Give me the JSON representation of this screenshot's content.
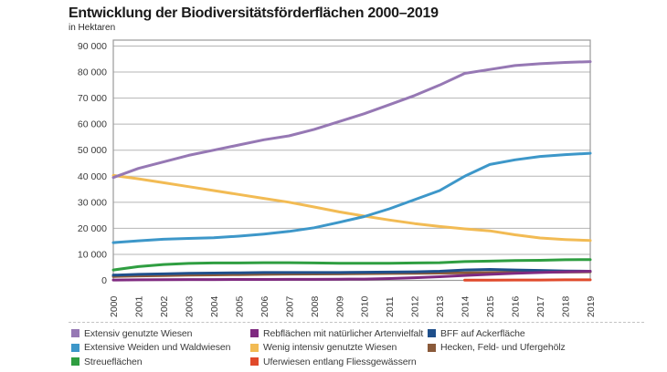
{
  "header": {
    "title": "Entwicklung der Biodiversitätsförderflächen 2000–2019",
    "subtitle": "in Hektaren"
  },
  "chart_data": {
    "type": "line",
    "title": "Entwicklung der Biodiversitätsförderflächen 2000–2019",
    "ylabel": "in Hektaren",
    "xlabel": "",
    "grid": true,
    "legend_position": "bottom",
    "ylim": [
      0,
      90000
    ],
    "yticks": [
      "0",
      "10 000",
      "20 000",
      "30 000",
      "40 000",
      "50 000",
      "60 000",
      "70 000",
      "80 000",
      "90 000"
    ],
    "x": [
      2000,
      2001,
      2002,
      2003,
      2004,
      2005,
      2006,
      2007,
      2008,
      2009,
      2010,
      2011,
      2012,
      2013,
      2014,
      2015,
      2016,
      2017,
      2018,
      2019
    ],
    "series": [
      {
        "name": "Extensiv genutzte Wiesen",
        "color": "#9678b4",
        "values": [
          39500,
          43000,
          45500,
          48000,
          50000,
          52000,
          54000,
          55500,
          58000,
          61000,
          64000,
          67500,
          71000,
          75000,
          79500,
          81000,
          82500,
          83200,
          83700,
          84000
        ]
      },
      {
        "name": "Extensive Weiden und Waldwiesen",
        "color": "#3d97c9",
        "values": [
          14500,
          15200,
          15800,
          16100,
          16400,
          17000,
          17800,
          18800,
          20200,
          22300,
          24500,
          27500,
          31000,
          34500,
          40000,
          44500,
          46300,
          47600,
          48300,
          48800
        ]
      },
      {
        "name": "Streueflächen",
        "color": "#2f9e41",
        "values": [
          4000,
          5300,
          6100,
          6500,
          6700,
          6700,
          6800,
          6800,
          6700,
          6600,
          6600,
          6600,
          6700,
          6800,
          7200,
          7400,
          7600,
          7700,
          7900,
          8000
        ]
      },
      {
        "name": "Rebflächen mit natürlicher Artenvielfalt",
        "color": "#7f2a80",
        "values": [
          150,
          200,
          250,
          300,
          300,
          350,
          350,
          400,
          400,
          450,
          500,
          700,
          1000,
          1400,
          1900,
          2300,
          2700,
          3000,
          3300,
          3500
        ]
      },
      {
        "name": "Wenig intensiv genutzte Wiesen",
        "color": "#f2bb54",
        "values": [
          40300,
          39000,
          37500,
          36000,
          34500,
          33000,
          31500,
          30000,
          28200,
          26300,
          24700,
          23200,
          21800,
          20700,
          19800,
          19000,
          17500,
          16300,
          15700,
          15300
        ]
      },
      {
        "name": "Uferwiesen entlang Fliessgewässern",
        "color": "#e04a2b",
        "values": [
          null,
          null,
          null,
          null,
          null,
          null,
          null,
          null,
          null,
          null,
          null,
          null,
          null,
          null,
          100,
          100,
          150,
          150,
          200,
          200
        ]
      },
      {
        "name": "BFF auf Ackerfläche",
        "color": "#1f4f8b",
        "values": [
          2000,
          2300,
          2500,
          2700,
          2800,
          2900,
          3000,
          3000,
          3000,
          3000,
          3100,
          3200,
          3300,
          3500,
          4000,
          4200,
          4000,
          3800,
          3600,
          3500
        ]
      },
      {
        "name": "Hecken, Feld- und Ufergehölz",
        "color": "#8a5a3a",
        "values": [
          1500,
          1700,
          1850,
          2000,
          2100,
          2200,
          2300,
          2400,
          2450,
          2500,
          2600,
          2650,
          2700,
          2800,
          2900,
          3000,
          3100,
          3150,
          3200,
          3300
        ]
      }
    ],
    "legend_columns": [
      [
        0,
        1,
        2
      ],
      [
        3,
        4,
        5
      ],
      [
        6,
        7
      ]
    ]
  }
}
